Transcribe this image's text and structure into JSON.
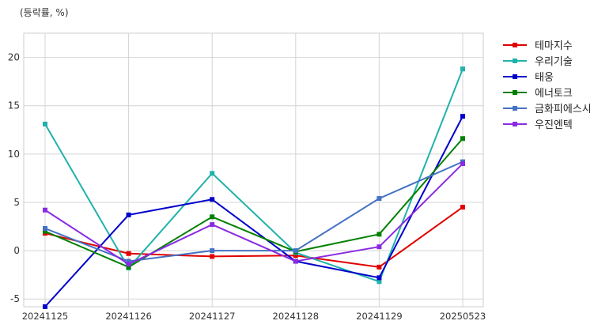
{
  "chart_data": {
    "type": "line",
    "unit_label": "(등락률, %)",
    "categories": [
      "20241125",
      "20241126",
      "20241127",
      "20241128",
      "20241129",
      "20250523"
    ],
    "ylim": [
      -5.8,
      22.5
    ],
    "yticks": [
      -5,
      0,
      5,
      10,
      15,
      20
    ],
    "grid": true,
    "legend_position": "right-outside-top",
    "series": [
      {
        "name": "테마지수",
        "color": "#e00000",
        "values": [
          1.8,
          -0.3,
          -0.6,
          -0.5,
          -1.7,
          4.5
        ]
      },
      {
        "name": "우리기술",
        "color": "#20b2aa",
        "values": [
          13.1,
          -1.8,
          8.0,
          -0.2,
          -3.2,
          18.8
        ]
      },
      {
        "name": "태웅",
        "color": "#0000cc",
        "values": [
          -5.8,
          3.7,
          5.3,
          -1.1,
          -2.8,
          13.9
        ]
      },
      {
        "name": "에너토크",
        "color": "#008000",
        "values": [
          2.0,
          -1.7,
          3.5,
          -0.1,
          1.7,
          11.6
        ]
      },
      {
        "name": "금화피에스시",
        "color": "#4472c4",
        "values": [
          2.3,
          -1.1,
          0.0,
          0.0,
          5.4,
          9.2
        ]
      },
      {
        "name": "우진엔텍",
        "color": "#8a2be2",
        "values": [
          4.2,
          -1.4,
          2.7,
          -1.1,
          0.4,
          9.0
        ]
      }
    ]
  }
}
